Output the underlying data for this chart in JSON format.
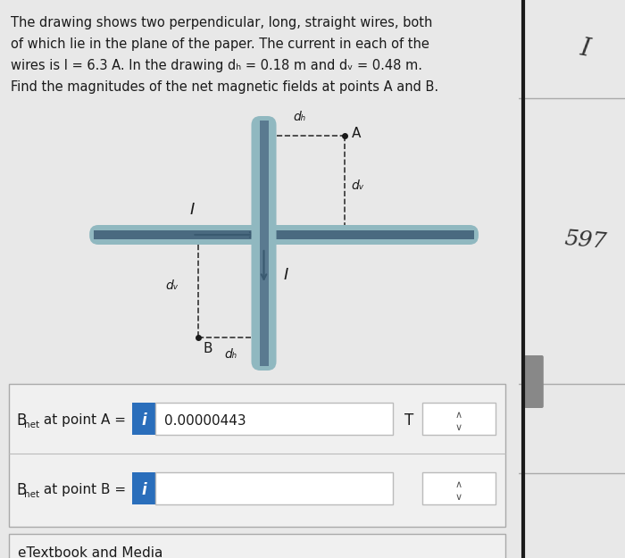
{
  "bg_color": "#e8e8e8",
  "white": "#ffffff",
  "blue": "#2a6ebb",
  "text_color": "#1a1a1a",
  "gray_wire": "#90b8c0",
  "dark_wire": "#4a6a80",
  "arrow_color": "#3a5a70",
  "title_lines": [
    "The drawing shows two perpendicular, long, straight wires, both",
    "of which lie in the plane of the paper. The current in each of the",
    "wires is I = 6.3 A. In the drawing dₕ = 0.18 m and dᵥ = 0.48 m.",
    "Find the magnitudes of the net magnetic fields at points A and B."
  ],
  "row1_value": "0.00000443",
  "row1_unit": "T",
  "footer": "eTextbook and Media",
  "side_text1": "I",
  "side_text2": "597"
}
